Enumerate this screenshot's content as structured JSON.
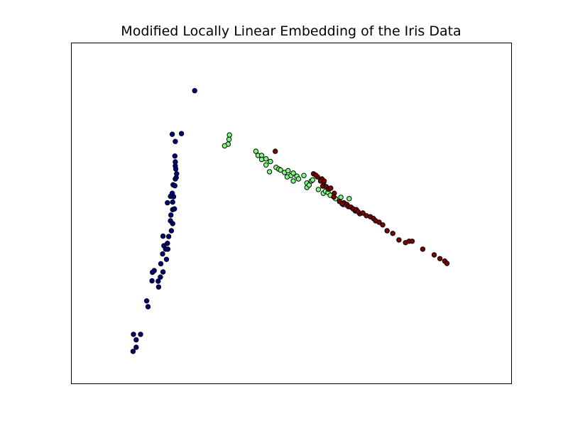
{
  "chart_data": {
    "type": "scatter",
    "title": "Modified Locally Linear Embedding of the Iris Data",
    "xlabel": "",
    "ylabel": "",
    "ticks": "none",
    "grid": false,
    "legend": "none",
    "xlim": [
      0,
      1
    ],
    "ylim": [
      0,
      1
    ],
    "colors": {
      "frame": "#000000",
      "marker_edge": "#000000"
    },
    "series": [
      {
        "color": "#000080",
        "points": [
          [
            0.281,
            0.859
          ],
          [
            0.251,
            0.733
          ],
          [
            0.23,
            0.731
          ],
          [
            0.237,
            0.71
          ],
          [
            0.236,
            0.667
          ],
          [
            0.237,
            0.65
          ],
          [
            0.237,
            0.638
          ],
          [
            0.238,
            0.629
          ],
          [
            0.24,
            0.615
          ],
          [
            0.239,
            0.604
          ],
          [
            0.237,
            0.6
          ],
          [
            0.232,
            0.583
          ],
          [
            0.236,
            0.58
          ],
          [
            0.23,
            0.558
          ],
          [
            0.233,
            0.548
          ],
          [
            0.231,
            0.532
          ],
          [
            0.226,
            0.549
          ],
          [
            0.231,
            0.51
          ],
          [
            0.235,
            0.512
          ],
          [
            0.227,
            0.494
          ],
          [
            0.226,
            0.477
          ],
          [
            0.231,
            0.469
          ],
          [
            0.219,
            0.53
          ],
          [
            0.228,
            0.448
          ],
          [
            0.222,
            0.431
          ],
          [
            0.219,
            0.411
          ],
          [
            0.22,
            0.394
          ],
          [
            0.215,
            0.394
          ],
          [
            0.209,
            0.432
          ],
          [
            0.211,
            0.404
          ],
          [
            0.208,
            0.38
          ],
          [
            0.204,
            0.351
          ],
          [
            0.217,
            0.364
          ],
          [
            0.209,
            0.327
          ],
          [
            0.203,
            0.312
          ],
          [
            0.198,
            0.3
          ],
          [
            0.189,
            0.331
          ],
          [
            0.185,
            0.326
          ],
          [
            0.184,
            0.301
          ],
          [
            0.172,
            0.242
          ],
          [
            0.175,
            0.225
          ],
          [
            0.158,
            0.144
          ],
          [
            0.148,
            0.106
          ],
          [
            0.148,
            0.128
          ],
          [
            0.142,
            0.144
          ],
          [
            0.141,
            0.094
          ],
          [
            0.199,
            0.283
          ]
        ]
      },
      {
        "color": "#7fff7f",
        "points": [
          [
            0.36,
            0.729
          ],
          [
            0.359,
            0.716
          ],
          [
            0.357,
            0.702
          ],
          [
            0.349,
            0.697
          ],
          [
            0.42,
            0.681
          ],
          [
            0.425,
            0.669
          ],
          [
            0.433,
            0.669
          ],
          [
            0.433,
            0.657
          ],
          [
            0.443,
            0.659
          ],
          [
            0.453,
            0.651
          ],
          [
            0.443,
            0.641
          ],
          [
            0.451,
            0.621
          ],
          [
            0.466,
            0.634
          ],
          [
            0.472,
            0.629
          ],
          [
            0.476,
            0.626
          ],
          [
            0.485,
            0.619
          ],
          [
            0.493,
            0.624
          ],
          [
            0.491,
            0.606
          ],
          [
            0.5,
            0.61
          ],
          [
            0.505,
            0.617
          ],
          [
            0.513,
            0.608
          ],
          [
            0.517,
            0.6
          ],
          [
            0.529,
            0.61
          ],
          [
            0.536,
            0.588
          ],
          [
            0.536,
            0.575
          ],
          [
            0.541,
            0.582
          ],
          [
            0.546,
            0.594
          ],
          [
            0.549,
            0.597
          ],
          [
            0.562,
            0.569
          ],
          [
            0.573,
            0.558
          ],
          [
            0.578,
            0.564
          ],
          [
            0.584,
            0.56
          ],
          [
            0.589,
            0.552
          ],
          [
            0.601,
            0.542
          ],
          [
            0.618,
            0.525
          ],
          [
            0.623,
            0.525
          ],
          [
            0.632,
            0.542
          ],
          [
            0.613,
            0.546
          ],
          [
            0.505,
            0.594
          ]
        ]
      },
      {
        "color": "#800000",
        "points": [
          [
            0.464,
            0.681
          ],
          [
            0.56,
            0.606
          ],
          [
            0.57,
            0.6
          ],
          [
            0.572,
            0.579
          ],
          [
            0.574,
            0.59
          ],
          [
            0.58,
            0.577
          ],
          [
            0.585,
            0.57
          ],
          [
            0.59,
            0.573
          ],
          [
            0.598,
            0.558
          ],
          [
            0.61,
            0.534
          ],
          [
            0.62,
            0.53
          ],
          [
            0.627,
            0.525
          ],
          [
            0.63,
            0.519
          ],
          [
            0.636,
            0.517
          ],
          [
            0.641,
            0.512
          ],
          [
            0.646,
            0.506
          ],
          [
            0.648,
            0.51
          ],
          [
            0.656,
            0.498
          ],
          [
            0.663,
            0.5
          ],
          [
            0.671,
            0.492
          ],
          [
            0.68,
            0.489
          ],
          [
            0.687,
            0.484
          ],
          [
            0.692,
            0.477
          ],
          [
            0.7,
            0.473
          ],
          [
            0.708,
            0.465
          ],
          [
            0.718,
            0.448
          ],
          [
            0.731,
            0.44
          ],
          [
            0.745,
            0.421
          ],
          [
            0.76,
            0.413
          ],
          [
            0.768,
            0.417
          ],
          [
            0.775,
            0.417
          ],
          [
            0.799,
            0.394
          ],
          [
            0.825,
            0.377
          ],
          [
            0.838,
            0.366
          ],
          [
            0.849,
            0.359
          ],
          [
            0.854,
            0.352
          ],
          [
            0.551,
            0.615
          ],
          [
            0.556,
            0.611
          ],
          [
            0.567,
            0.594
          ],
          [
            0.575,
            0.594
          ],
          [
            0.597,
            0.547
          ],
          [
            0.616,
            0.527
          ],
          [
            0.652,
            0.504
          ]
        ]
      }
    ]
  }
}
